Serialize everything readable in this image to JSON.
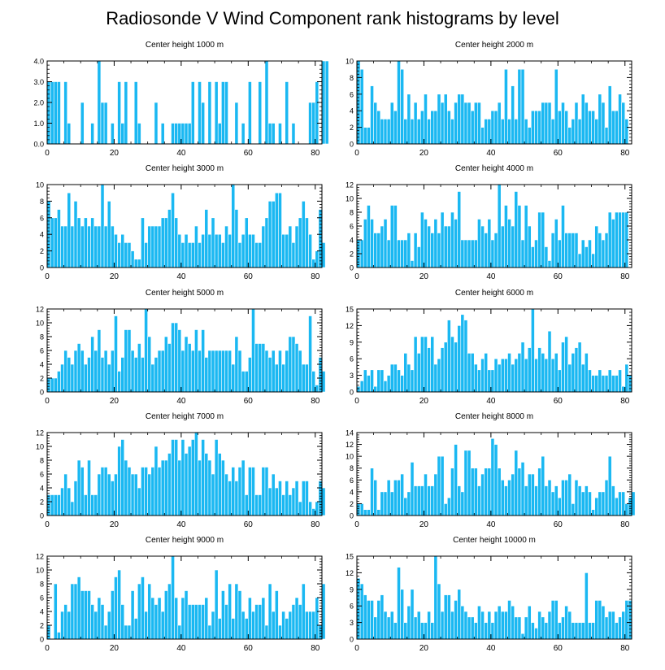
{
  "title": "Radiosonde V Wind Component rank histograms by level",
  "colors": {
    "bar_fill": "#1ab8f2",
    "bar_edge": "#ffffff",
    "axis": "#000000"
  },
  "chart_data": [
    {
      "type": "bar",
      "title": "Center height 1000 m",
      "xlim": [
        0,
        82
      ],
      "xticks": [
        "0",
        "20",
        "40",
        "60",
        "80"
      ],
      "ylim": [
        0,
        4
      ],
      "yticks": [
        "0.0",
        "1.0",
        "2.0",
        "3.0",
        "4.0"
      ],
      "values": [
        3,
        3,
        3,
        3,
        0,
        3,
        1,
        0,
        0,
        0,
        2,
        0,
        0,
        1,
        0,
        4,
        2,
        2,
        0,
        1,
        0,
        3,
        1,
        3,
        0,
        0,
        3,
        1,
        0,
        0,
        0,
        0,
        2,
        0,
        1,
        0,
        0,
        1,
        1,
        1,
        1,
        1,
        1,
        3,
        0,
        3,
        2,
        0,
        3,
        0,
        3,
        1,
        3,
        3,
        0,
        0,
        2,
        0,
        1,
        0,
        3,
        0,
        0,
        3,
        0,
        4,
        1,
        1,
        0,
        1,
        0,
        3,
        0,
        1,
        0,
        0,
        0,
        0,
        2,
        2,
        3,
        0,
        4,
        4
      ]
    },
    {
      "type": "bar",
      "title": "Center height 2000 m",
      "xlim": [
        0,
        82
      ],
      "xticks": [
        "0",
        "20",
        "40",
        "60",
        "80"
      ],
      "ylim": [
        0,
        10
      ],
      "yticks": [
        "0",
        "2",
        "4",
        "6",
        "8",
        "10"
      ],
      "values": [
        10,
        9,
        2,
        2,
        7,
        5,
        4,
        3,
        3,
        3,
        5,
        4,
        10,
        9,
        3,
        6,
        3,
        5,
        3,
        4,
        6,
        3,
        4,
        4,
        6,
        5,
        6,
        4,
        3,
        5,
        6,
        6,
        5,
        5,
        4,
        5,
        5,
        2,
        3,
        3,
        4,
        4,
        5,
        3,
        9,
        3,
        7,
        3,
        9,
        9,
        3,
        2,
        4,
        4,
        4,
        5,
        5,
        5,
        3,
        9,
        4,
        5,
        4,
        2,
        3,
        5,
        3,
        6,
        5,
        4,
        4,
        3,
        6,
        5,
        2,
        7,
        4,
        4,
        6,
        5,
        3
      ]
    },
    {
      "type": "bar",
      "title": "Center height 3000 m",
      "xlim": [
        0,
        82
      ],
      "xticks": [
        "0",
        "20",
        "40",
        "60",
        "80"
      ],
      "ylim": [
        0,
        10
      ],
      "yticks": [
        "0",
        "2",
        "4",
        "6",
        "8",
        "10"
      ],
      "values": [
        8,
        6,
        6,
        7,
        5,
        5,
        9,
        5,
        8,
        6,
        5,
        6,
        5,
        6,
        5,
        5,
        10,
        5,
        8,
        5,
        4,
        3,
        4,
        3,
        3,
        2,
        1,
        1,
        6,
        3,
        5,
        5,
        5,
        5,
        6,
        6,
        7,
        9,
        6,
        4,
        3,
        4,
        3,
        3,
        5,
        3,
        4,
        7,
        4,
        6,
        4,
        4,
        3,
        5,
        4,
        10,
        7,
        3,
        4,
        6,
        4,
        4,
        3,
        3,
        5,
        6,
        8,
        8,
        9,
        9,
        4,
        4,
        5,
        3,
        5,
        6,
        8,
        6,
        4,
        1,
        2,
        7,
        3
      ]
    },
    {
      "type": "bar",
      "title": "Center height 4000 m",
      "xlim": [
        0,
        82
      ],
      "xticks": [
        "0",
        "20",
        "40",
        "60",
        "80"
      ],
      "ylim": [
        0,
        12
      ],
      "yticks": [
        "0",
        "2",
        "4",
        "6",
        "8",
        "10",
        "12"
      ],
      "values": [
        4,
        4,
        7,
        9,
        7,
        5,
        5,
        6,
        7,
        4,
        9,
        9,
        4,
        4,
        4,
        5,
        1,
        5,
        3,
        8,
        7,
        6,
        5,
        7,
        5,
        8,
        6,
        6,
        8,
        7,
        11,
        4,
        4,
        4,
        4,
        4,
        7,
        6,
        5,
        7,
        4,
        5,
        12,
        6,
        9,
        7,
        6,
        11,
        9,
        4,
        9,
        6,
        3,
        4,
        8,
        8,
        3,
        1,
        5,
        7,
        4,
        9,
        5,
        5,
        5,
        5,
        2,
        4,
        3,
        4,
        2,
        6,
        5,
        4,
        5,
        8,
        7,
        8,
        8,
        8,
        8
      ]
    },
    {
      "type": "bar",
      "title": "Center height 5000 m",
      "xlim": [
        0,
        82
      ],
      "xticks": [
        "0",
        "20",
        "40",
        "60",
        "80"
      ],
      "ylim": [
        0,
        12
      ],
      "yticks": [
        "0",
        "2",
        "4",
        "6",
        "8",
        "10",
        "12"
      ],
      "values": [
        2,
        2,
        2,
        3,
        4,
        6,
        5,
        4,
        6,
        7,
        6,
        4,
        5,
        8,
        6,
        9,
        5,
        6,
        4,
        6,
        11,
        3,
        5,
        9,
        9,
        6,
        5,
        7,
        5,
        12,
        8,
        4,
        5,
        6,
        6,
        8,
        7,
        10,
        10,
        9,
        6,
        8,
        7,
        6,
        9,
        6,
        9,
        5,
        6,
        6,
        6,
        6,
        6,
        6,
        6,
        4,
        8,
        6,
        3,
        3,
        5,
        12,
        7,
        7,
        7,
        6,
        5,
        6,
        4,
        6,
        4,
        6,
        8,
        8,
        7,
        6,
        4,
        4,
        11,
        3,
        1,
        5,
        3
      ]
    },
    {
      "type": "bar",
      "title": "Center height 6000 m",
      "xlim": [
        0,
        82
      ],
      "xticks": [
        "0",
        "20",
        "40",
        "60",
        "80"
      ],
      "ylim": [
        0,
        15
      ],
      "yticks": [
        "0",
        "3",
        "6",
        "9",
        "12",
        "15"
      ],
      "values": [
        1,
        2,
        4,
        3,
        4,
        1,
        4,
        4,
        2,
        3,
        5,
        5,
        4,
        3,
        7,
        5,
        4,
        10,
        7,
        10,
        10,
        8,
        10,
        5,
        6,
        8,
        9,
        13,
        10,
        9,
        12,
        14,
        13,
        7,
        7,
        5,
        4,
        6,
        7,
        4,
        4,
        6,
        5,
        6,
        6,
        7,
        5,
        6,
        7,
        9,
        6,
        8,
        15,
        6,
        8,
        7,
        6,
        11,
        6,
        7,
        4,
        9,
        10,
        5,
        7,
        8,
        9,
        5,
        7,
        4,
        3,
        3,
        4,
        3,
        3,
        4,
        3,
        3,
        4,
        1,
        5,
        3
      ]
    },
    {
      "type": "bar",
      "title": "Center height 7000 m",
      "xlim": [
        0,
        82
      ],
      "xticks": [
        "0",
        "20",
        "40",
        "60",
        "80"
      ],
      "ylim": [
        0,
        12
      ],
      "yticks": [
        "0",
        "2",
        "4",
        "6",
        "8",
        "10",
        "12"
      ],
      "values": [
        3,
        3,
        3,
        3,
        4,
        6,
        4,
        2,
        5,
        8,
        7,
        3,
        8,
        3,
        3,
        6,
        7,
        7,
        6,
        5,
        6,
        10,
        11,
        8,
        7,
        6,
        6,
        4,
        7,
        7,
        6,
        7,
        10,
        7,
        8,
        8,
        9,
        11,
        11,
        8,
        11,
        9,
        10,
        11,
        12,
        8,
        11,
        9,
        8,
        6,
        11,
        9,
        8,
        6,
        5,
        7,
        5,
        7,
        8,
        3,
        7,
        7,
        3,
        3,
        7,
        7,
        4,
        6,
        4,
        5,
        3,
        5,
        3,
        4,
        5,
        2,
        5,
        5,
        2,
        1,
        2,
        5,
        4
      ]
    },
    {
      "type": "bar",
      "title": "Center height 8000 m",
      "xlim": [
        0,
        82
      ],
      "xticks": [
        "0",
        "20",
        "40",
        "60",
        "80"
      ],
      "ylim": [
        0,
        14
      ],
      "yticks": [
        "0",
        "2",
        "4",
        "6",
        "8",
        "10",
        "12",
        "14"
      ],
      "values": [
        2,
        2,
        1,
        1,
        8,
        6,
        1,
        4,
        4,
        6,
        4,
        6,
        6,
        7,
        3,
        4,
        9,
        5,
        5,
        5,
        7,
        5,
        5,
        7,
        10,
        10,
        2,
        3,
        8,
        12,
        5,
        4,
        11,
        11,
        8,
        8,
        5,
        7,
        8,
        8,
        13,
        12,
        8,
        6,
        5,
        6,
        7,
        11,
        8,
        9,
        5,
        7,
        7,
        5,
        8,
        10,
        5,
        6,
        4,
        5,
        3,
        6,
        6,
        7,
        2,
        6,
        5,
        4,
        5,
        4,
        1,
        3,
        4,
        4,
        6,
        10,
        5,
        3,
        4,
        4,
        2,
        3,
        4
      ]
    },
    {
      "type": "bar",
      "title": "Center height 9000 m",
      "xlim": [
        0,
        82
      ],
      "xticks": [
        "0",
        "20",
        "40",
        "60",
        "80"
      ],
      "ylim": [
        0,
        12
      ],
      "yticks": [
        "0",
        "2",
        "4",
        "6",
        "8",
        "10",
        "12"
      ],
      "values": [
        2,
        0,
        8,
        1,
        4,
        5,
        4,
        8,
        8,
        9,
        7,
        7,
        7,
        5,
        4,
        6,
        5,
        2,
        4,
        7,
        9,
        10,
        5,
        2,
        2,
        7,
        3,
        8,
        9,
        4,
        8,
        6,
        5,
        6,
        4,
        7,
        8,
        12,
        6,
        2,
        6,
        7,
        5,
        5,
        5,
        5,
        5,
        6,
        2,
        4,
        10,
        3,
        7,
        5,
        8,
        3,
        8,
        7,
        4,
        3,
        6,
        4,
        5,
        5,
        6,
        2,
        8,
        4,
        7,
        2,
        4,
        3,
        4,
        5,
        6,
        5,
        8,
        4,
        4,
        4,
        6,
        2,
        8
      ]
    },
    {
      "type": "bar",
      "title": "Center height 10000 m",
      "xlim": [
        0,
        82
      ],
      "xticks": [
        "0",
        "20",
        "40",
        "60",
        "80"
      ],
      "ylim": [
        0,
        15
      ],
      "yticks": [
        "0",
        "3",
        "6",
        "9",
        "12",
        "15"
      ],
      "values": [
        11,
        10,
        8,
        7,
        7,
        4,
        7,
        8,
        5,
        4,
        5,
        3,
        13,
        9,
        3,
        6,
        9,
        4,
        5,
        3,
        3,
        5,
        3,
        15,
        10,
        5,
        8,
        8,
        5,
        7,
        9,
        6,
        5,
        4,
        4,
        3,
        6,
        5,
        3,
        5,
        3,
        5,
        6,
        5,
        5,
        7,
        6,
        4,
        4,
        1,
        4,
        6,
        3,
        2,
        5,
        4,
        3,
        5,
        7,
        7,
        3,
        4,
        6,
        5,
        3,
        3,
        3,
        3,
        12,
        3,
        3,
        7,
        7,
        6,
        4,
        5,
        5,
        3,
        4,
        5,
        7,
        7
      ]
    }
  ]
}
